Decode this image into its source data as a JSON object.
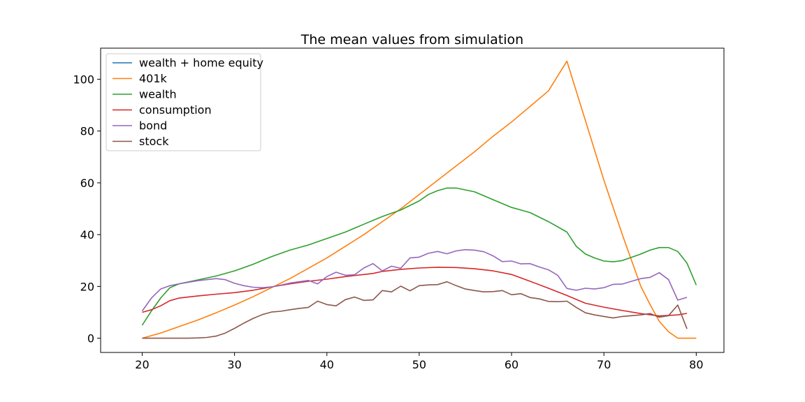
{
  "chart_data": {
    "type": "line",
    "title": "The mean values from simulation",
    "xlabel": "",
    "ylabel": "",
    "xlim": [
      15.5,
      83
    ],
    "ylim": [
      -5.5,
      112
    ],
    "xticks": [
      20,
      30,
      40,
      50,
      60,
      70,
      80
    ],
    "yticks": [
      0,
      20,
      40,
      60,
      80,
      100
    ],
    "grid": false,
    "legend_position": "top-left",
    "series": [
      {
        "name": "wealth + home equity",
        "color": "#1f77b4",
        "x": [],
        "y": []
      },
      {
        "name": "401k",
        "color": "#ff7f0e",
        "x": [
          20,
          22,
          24,
          26,
          28,
          30,
          32,
          34,
          36,
          38,
          40,
          42,
          44,
          46,
          48,
          50,
          52,
          54,
          56,
          58,
          60,
          62,
          64,
          66,
          68,
          70,
          72,
          74,
          75,
          76,
          77,
          78,
          79,
          80
        ],
        "y": [
          0,
          2,
          4.5,
          7,
          9.8,
          12.8,
          16,
          19.5,
          23,
          27,
          31,
          35.5,
          40,
          45,
          50,
          55.5,
          61,
          66.5,
          72,
          78,
          83.5,
          89.5,
          95.5,
          107,
          84,
          61,
          40,
          20,
          13,
          6.5,
          2.5,
          0,
          0,
          0
        ]
      },
      {
        "name": "wealth",
        "color": "#2ca02c",
        "x": [
          20,
          21,
          22,
          23,
          24,
          26,
          28,
          30,
          32,
          34,
          36,
          38,
          40,
          42,
          44,
          46,
          48,
          50,
          51,
          52,
          53,
          54,
          56,
          58,
          60,
          61,
          62,
          64,
          66,
          67,
          68,
          69,
          70,
          71,
          72,
          74,
          75,
          76,
          77,
          78,
          79,
          80
        ],
        "y": [
          5,
          10.5,
          15.5,
          19.5,
          21,
          22.5,
          24,
          26,
          28.5,
          31.5,
          34,
          36,
          38.5,
          41,
          44,
          47,
          49.5,
          53,
          55.5,
          57,
          58,
          58,
          56.5,
          53.5,
          50.5,
          49.5,
          48.5,
          45,
          41,
          35.5,
          32.5,
          31,
          29.8,
          29.5,
          30,
          32.5,
          34,
          35,
          35,
          33.5,
          29,
          20.5
        ]
      },
      {
        "name": "consumption",
        "color": "#d62728",
        "x": [
          20,
          21,
          22,
          23,
          24,
          26,
          28,
          30,
          32,
          34,
          36,
          38,
          40,
          42,
          44,
          45,
          46,
          48,
          50,
          52,
          54,
          56,
          58,
          60,
          62,
          64,
          66,
          68,
          70,
          72,
          74,
          76,
          78,
          79
        ],
        "y": [
          10,
          11,
          12.5,
          14.5,
          15.5,
          16.3,
          17,
          17.6,
          18.5,
          19.8,
          21,
          22,
          22.8,
          23.8,
          24.6,
          25,
          25.8,
          26.6,
          27.1,
          27.4,
          27.3,
          26.8,
          26,
          24.6,
          22,
          19.3,
          16.5,
          13.5,
          12,
          10.7,
          9.5,
          8.6,
          9,
          9.6
        ]
      },
      {
        "name": "bond",
        "color": "#9467bd",
        "x": [
          20,
          21,
          22,
          23,
          24,
          25,
          26,
          27,
          28,
          29,
          30,
          31,
          32,
          33,
          34,
          35,
          36,
          37,
          38,
          39,
          40,
          41,
          42,
          43,
          44,
          45,
          46,
          47,
          48,
          49,
          50,
          51,
          52,
          53,
          54,
          55,
          56,
          57,
          58,
          59,
          60,
          61,
          62,
          63,
          64,
          65,
          66,
          67,
          68,
          69,
          70,
          71,
          72,
          73,
          74,
          75,
          76,
          77,
          78,
          79
        ],
        "y": [
          10.5,
          15.5,
          19,
          20.3,
          21,
          21.6,
          22.2,
          22.6,
          23,
          22.6,
          21.2,
          20.3,
          19.7,
          19.5,
          19.8,
          20.5,
          21.3,
          21.8,
          22.3,
          21,
          23.8,
          25.5,
          24.3,
          24.5,
          27.1,
          28.8,
          26,
          27.8,
          27,
          31,
          31.3,
          32.8,
          33.5,
          32.6,
          33.7,
          34.2,
          34,
          33.4,
          31.8,
          29.6,
          29.8,
          28.7,
          28.8,
          27.5,
          26.4,
          24.3,
          19.2,
          18.5,
          19.3,
          19,
          19.5,
          20.8,
          20.9,
          22,
          23,
          23.5,
          25.3,
          22.6,
          14.7,
          15.8
        ]
      },
      {
        "name": "stock",
        "color": "#8c564b",
        "x": [
          20,
          21,
          22,
          23,
          24,
          25,
          26,
          27,
          28,
          29,
          30,
          31,
          32,
          33,
          34,
          35,
          36,
          37,
          38,
          39,
          40,
          41,
          42,
          43,
          44,
          45,
          46,
          47,
          48,
          49,
          50,
          51,
          52,
          53,
          54,
          55,
          56,
          57,
          58,
          59,
          60,
          61,
          62,
          63,
          64,
          65,
          66,
          67,
          68,
          69,
          70,
          71,
          72,
          73,
          74,
          75,
          76,
          77,
          78,
          79
        ],
        "y": [
          0,
          0,
          0,
          0,
          0,
          0,
          0.1,
          0.3,
          0.8,
          2,
          3.8,
          5.8,
          7.6,
          9.1,
          10.1,
          10.4,
          11,
          11.5,
          11.9,
          14.3,
          13,
          12.5,
          14.9,
          15.9,
          14.6,
          14.8,
          18.4,
          17.9,
          20.1,
          18.3,
          20.3,
          20.6,
          20.7,
          21.8,
          20.3,
          19,
          18.4,
          17.9,
          18,
          18.4,
          16.8,
          17.2,
          15.7,
          15.2,
          14.2,
          14.1,
          14.3,
          11.9,
          9.8,
          9,
          8.4,
          7.8,
          8.4,
          8.7,
          9,
          9.5,
          8.1,
          8.7,
          12.8,
          3.6
        ]
      }
    ]
  }
}
